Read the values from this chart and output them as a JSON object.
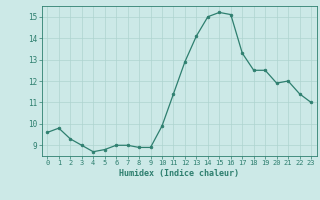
{
  "x": [
    0,
    1,
    2,
    3,
    4,
    5,
    6,
    7,
    8,
    9,
    10,
    11,
    12,
    13,
    14,
    15,
    16,
    17,
    18,
    19,
    20,
    21,
    22,
    23
  ],
  "y": [
    9.6,
    9.8,
    9.3,
    9.0,
    8.7,
    8.8,
    9.0,
    9.0,
    8.9,
    8.9,
    9.9,
    11.4,
    12.9,
    14.1,
    15.0,
    15.2,
    15.1,
    13.3,
    12.5,
    12.5,
    11.9,
    12.0,
    11.4,
    11.0
  ],
  "xlabel": "Humidex (Indice chaleur)",
  "ylim": [
    8.5,
    15.5
  ],
  "xlim": [
    -0.5,
    23.5
  ],
  "yticks": [
    9,
    10,
    11,
    12,
    13,
    14,
    15
  ],
  "xticks": [
    0,
    1,
    2,
    3,
    4,
    5,
    6,
    7,
    8,
    9,
    10,
    11,
    12,
    13,
    14,
    15,
    16,
    17,
    18,
    19,
    20,
    21,
    22,
    23
  ],
  "line_color": "#2e7f6f",
  "marker_color": "#2e7f6f",
  "bg_color": "#cce9e7",
  "grid_color": "#aed4d0",
  "xlabel_color": "#2e7f6f",
  "tick_color": "#2e7f6f",
  "axis_color": "#2e7f6f",
  "xtick_fontsize": 5.0,
  "ytick_fontsize": 5.5,
  "xlabel_fontsize": 6.0,
  "linewidth": 0.9,
  "markersize": 2.0
}
